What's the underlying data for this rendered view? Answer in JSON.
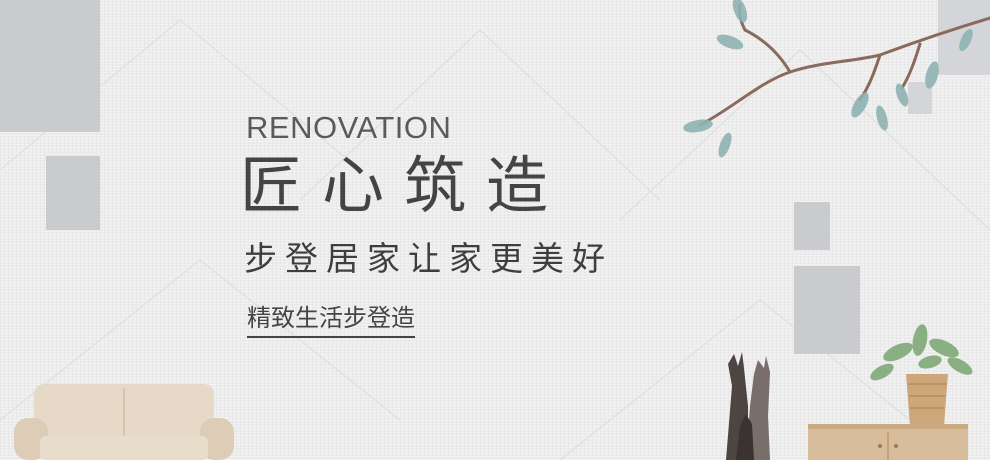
{
  "banner": {
    "label_en": "RENOVATION",
    "title": "匠心筑造",
    "subtitle": "步登居家让家更美好",
    "link_text": "精致生活步登造"
  },
  "colors": {
    "background": "#ececec",
    "square": "#c9cbce",
    "text": "#444444",
    "leaf": "#8fb3b3",
    "branch": "#8a6a5a"
  },
  "icons": [
    "branch-illustration",
    "sofa-illustration",
    "deer-figurine-illustration",
    "plant-pot-illustration",
    "cabinet-illustration"
  ]
}
